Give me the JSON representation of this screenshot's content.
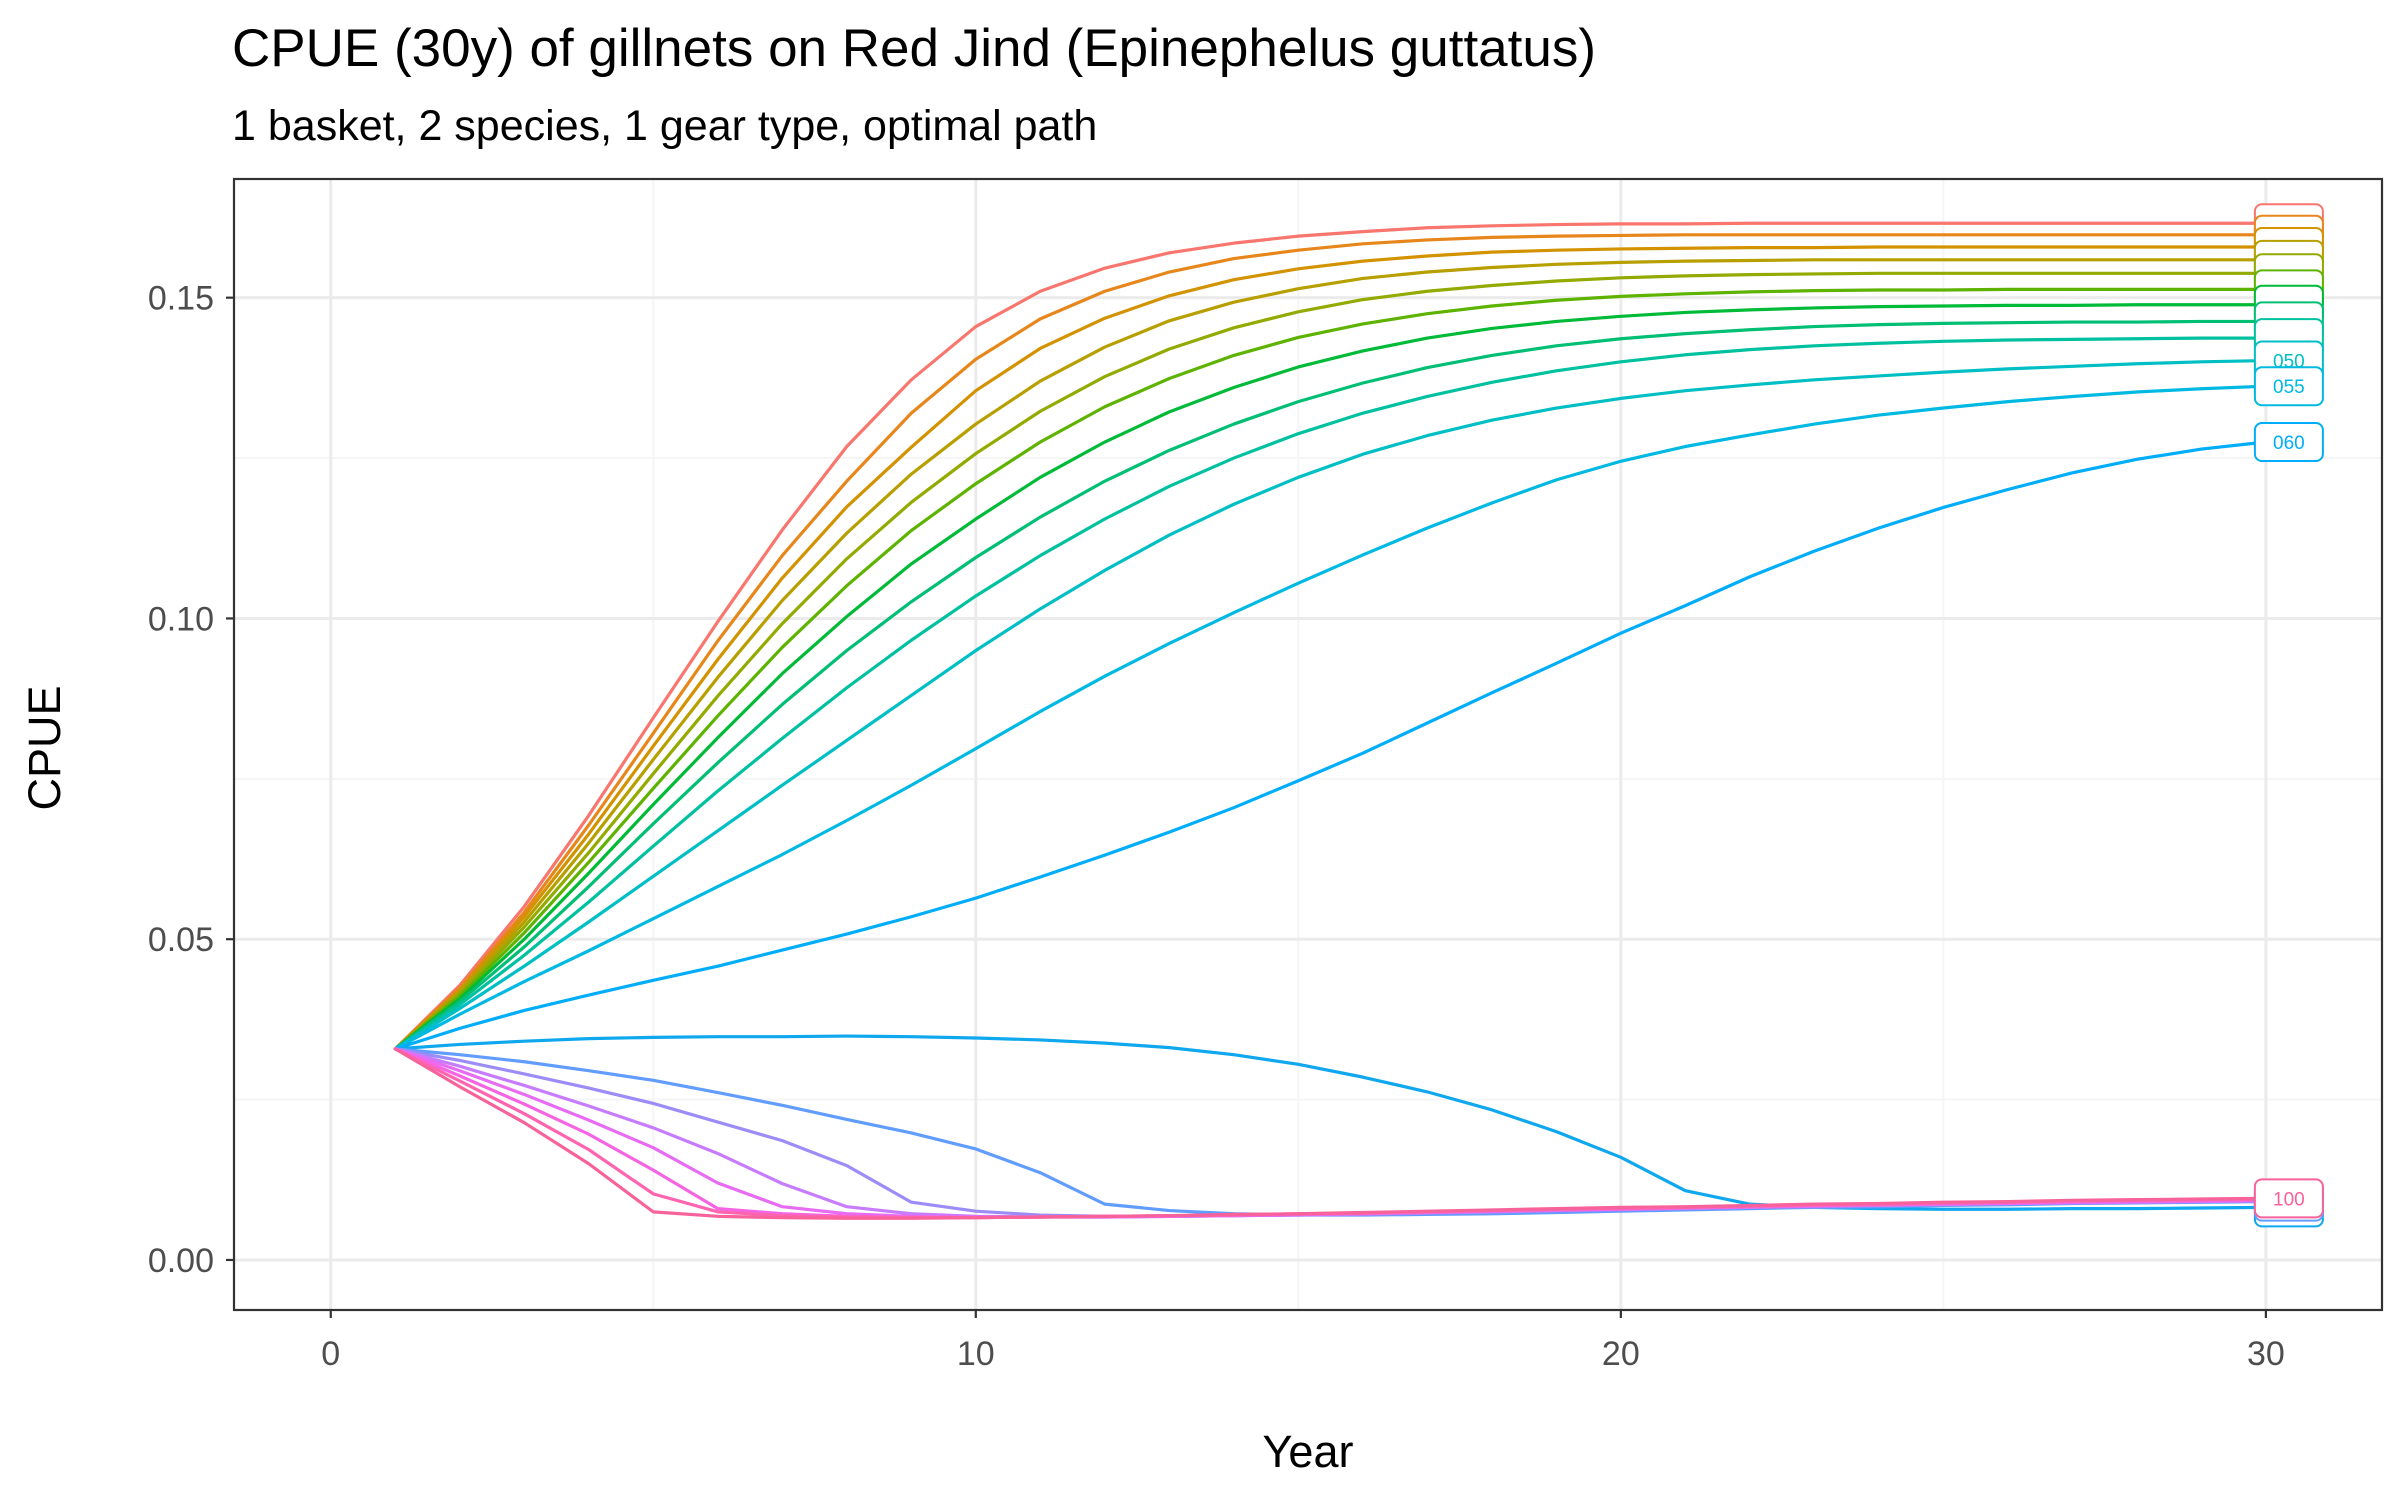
{
  "chart_data": {
    "type": "line",
    "title": "CPUE (30y) of gillnets on Red Jind (Epinephelus guttatus)",
    "subtitle": "1 basket, 2 species, 1 gear type, optimal path",
    "xlabel": "Year",
    "ylabel": "CPUE",
    "xlim": [
      -1.5,
      31.8
    ],
    "ylim": [
      -0.0078,
      0.1685
    ],
    "x_ticks": [
      0,
      10,
      20,
      30
    ],
    "x_tick_labels": [
      "0",
      "10",
      "20",
      "30"
    ],
    "y_ticks": [
      0.0,
      0.05,
      0.1,
      0.15
    ],
    "y_tick_labels": [
      "0.00",
      "0.05",
      "0.10",
      "0.15"
    ],
    "grid": true,
    "legend": "none (labels at line ends)",
    "x": [
      1,
      2,
      3,
      4,
      5,
      6,
      7,
      8,
      9,
      10,
      11,
      12,
      13,
      14,
      15,
      16,
      17,
      18,
      19,
      20,
      21,
      22,
      23,
      24,
      25,
      26,
      27,
      28,
      29,
      30
    ],
    "series": [
      {
        "color": "#F8766D",
        "values": [
          0.0329,
          0.0428,
          0.0551,
          0.0693,
          0.0845,
          0.0995,
          0.1138,
          0.1268,
          0.1372,
          0.1455,
          0.151,
          0.1546,
          0.157,
          0.1585,
          0.1596,
          0.1603,
          0.1609,
          0.1612,
          0.1614,
          0.1615,
          0.1615,
          0.1616,
          0.1616,
          0.1616,
          0.1616,
          0.1616,
          0.1616,
          0.1616,
          0.1616,
          0.1616
        ]
      },
      {
        "color": "#E7861B",
        "values": [
          0.0329,
          0.0424,
          0.0542,
          0.0678,
          0.0821,
          0.0965,
          0.1098,
          0.1214,
          0.132,
          0.1404,
          0.1467,
          0.151,
          0.154,
          0.1561,
          0.1574,
          0.1584,
          0.159,
          0.1594,
          0.1596,
          0.1597,
          0.1598,
          0.1598,
          0.1598,
          0.1598,
          0.1598,
          0.1598,
          0.1598,
          0.1598,
          0.1598,
          0.1598
        ]
      },
      {
        "color": "#D39200",
        "values": [
          0.0329,
          0.0421,
          0.0535,
          0.0664,
          0.0801,
          0.0936,
          0.1063,
          0.1174,
          0.1267,
          0.1355,
          0.1421,
          0.1468,
          0.1503,
          0.1528,
          0.1545,
          0.1557,
          0.1565,
          0.1571,
          0.1574,
          0.1576,
          0.1577,
          0.1578,
          0.1578,
          0.1579,
          0.1579,
          0.1579,
          0.1579,
          0.1579,
          0.1579,
          0.1579
        ]
      },
      {
        "color": "#B79F00",
        "values": [
          0.0329,
          0.0418,
          0.0527,
          0.065,
          0.078,
          0.0908,
          0.1028,
          0.1133,
          0.1225,
          0.1303,
          0.137,
          0.1423,
          0.1464,
          0.1493,
          0.1514,
          0.153,
          0.154,
          0.1547,
          0.1552,
          0.1555,
          0.1557,
          0.1558,
          0.1559,
          0.1559,
          0.1559,
          0.1559,
          0.1559,
          0.1559,
          0.1559,
          0.1559
        ]
      },
      {
        "color": "#93AA00",
        "values": [
          0.0329,
          0.0415,
          0.0519,
          0.0635,
          0.0758,
          0.0879,
          0.0992,
          0.1093,
          0.1181,
          0.1257,
          0.1323,
          0.1377,
          0.142,
          0.1453,
          0.1478,
          0.1497,
          0.151,
          0.1519,
          0.1526,
          0.1531,
          0.1534,
          0.1536,
          0.1537,
          0.1538,
          0.1538,
          0.1538,
          0.1538,
          0.1538,
          0.1538,
          0.1538
        ]
      },
      {
        "color": "#5EB300",
        "values": [
          0.0329,
          0.0411,
          0.051,
          0.062,
          0.0735,
          0.0848,
          0.0955,
          0.1051,
          0.1137,
          0.121,
          0.1275,
          0.133,
          0.1374,
          0.141,
          0.1438,
          0.1459,
          0.1475,
          0.1487,
          0.1496,
          0.1502,
          0.1506,
          0.1509,
          0.1511,
          0.1512,
          0.1512,
          0.1513,
          0.1513,
          0.1513,
          0.1513,
          0.1513
        ]
      },
      {
        "color": "#00BA38",
        "values": [
          0.0329,
          0.0407,
          0.05,
          0.0603,
          0.071,
          0.0814,
          0.0914,
          0.1003,
          0.1085,
          0.1155,
          0.122,
          0.1275,
          0.1322,
          0.136,
          0.1392,
          0.1417,
          0.1437,
          0.1452,
          0.1463,
          0.1471,
          0.1477,
          0.1481,
          0.1484,
          0.1486,
          0.1487,
          0.1488,
          0.1488,
          0.1489,
          0.1489,
          0.1489
        ]
      },
      {
        "color": "#00BF74",
        "values": [
          0.0329,
          0.0403,
          0.0488,
          0.0582,
          0.068,
          0.0775,
          0.0866,
          0.095,
          0.1026,
          0.1095,
          0.1158,
          0.1214,
          0.1262,
          0.1303,
          0.1338,
          0.1367,
          0.1391,
          0.141,
          0.1425,
          0.1436,
          0.1444,
          0.145,
          0.1455,
          0.1458,
          0.146,
          0.1461,
          0.1462,
          0.1462,
          0.1463,
          0.1463
        ]
      },
      {
        "color": "#00C19F",
        "values": [
          0.0329,
          0.0398,
          0.0475,
          0.0558,
          0.0645,
          0.0731,
          0.0813,
          0.0892,
          0.0966,
          0.1035,
          0.1098,
          0.1155,
          0.1206,
          0.125,
          0.1288,
          0.132,
          0.1346,
          0.1368,
          0.1386,
          0.14,
          0.1411,
          0.1419,
          0.1425,
          0.1429,
          0.1432,
          0.1434,
          0.1435,
          0.1436,
          0.1437,
          0.1437
        ]
      },
      {
        "color": "#00BFC4",
        "values": [
          0.0329,
          0.0392,
          0.0458,
          0.0527,
          0.0598,
          0.0669,
          0.074,
          0.081,
          0.088,
          0.095,
          0.1015,
          0.1075,
          0.113,
          0.1178,
          0.122,
          0.1256,
          0.1285,
          0.1309,
          0.1328,
          0.1343,
          0.1355,
          0.1364,
          0.1372,
          0.1378,
          0.1384,
          0.1389,
          0.1393,
          0.1397,
          0.14,
          0.1402
        ]
      },
      {
        "color": "#00B9E3",
        "values": [
          0.0329,
          0.0383,
          0.0434,
          0.0482,
          0.0532,
          0.0582,
          0.0632,
          0.0685,
          0.074,
          0.0797,
          0.0855,
          0.091,
          0.0961,
          0.1009,
          0.1055,
          0.1099,
          0.1141,
          0.118,
          0.1216,
          0.1245,
          0.1268,
          0.1286,
          0.1303,
          0.1317,
          0.1328,
          0.1338,
          0.1346,
          0.1353,
          0.1358,
          0.1362
        ]
      },
      {
        "color": "#00ADFA",
        "values": [
          0.0329,
          0.0361,
          0.0389,
          0.0413,
          0.0436,
          0.0458,
          0.0483,
          0.0508,
          0.0535,
          0.0564,
          0.0597,
          0.0631,
          0.0667,
          0.0705,
          0.0747,
          0.079,
          0.0837,
          0.0884,
          0.093,
          0.0977,
          0.102,
          0.1065,
          0.1105,
          0.1141,
          0.1173,
          0.1201,
          0.1227,
          0.1248,
          0.1264,
          0.1275
        ]
      },
      {
        "color": "#0FA7EE",
        "values": [
          0.0329,
          0.0336,
          0.0341,
          0.0345,
          0.0347,
          0.0348,
          0.0348,
          0.0349,
          0.0348,
          0.0346,
          0.0343,
          0.0338,
          0.0331,
          0.032,
          0.0305,
          0.0285,
          0.0262,
          0.0234,
          0.02,
          0.016,
          0.0108,
          0.0087,
          0.0082,
          0.008,
          0.0079,
          0.0079,
          0.008,
          0.008,
          0.0081,
          0.0082
        ]
      },
      {
        "color": "#619CFF",
        "values": [
          0.0329,
          0.032,
          0.0309,
          0.0295,
          0.028,
          0.0261,
          0.0241,
          0.0219,
          0.0198,
          0.0173,
          0.0136,
          0.0087,
          0.0077,
          0.0072,
          0.007,
          0.007,
          0.0071,
          0.0072,
          0.0074,
          0.0076,
          0.0078,
          0.008,
          0.0082,
          0.0083,
          0.0085,
          0.0086,
          0.0088,
          0.0089,
          0.009,
          0.0091
        ]
      },
      {
        "color": "#9C8CF7",
        "values": [
          0.0329,
          0.0311,
          0.029,
          0.0268,
          0.0244,
          0.0215,
          0.0186,
          0.0147,
          0.009,
          0.0076,
          0.007,
          0.0068,
          0.0068,
          0.0069,
          0.007,
          0.0071,
          0.0073,
          0.0075,
          0.0077,
          0.0078,
          0.008,
          0.0082,
          0.0083,
          0.0085,
          0.0086,
          0.0088,
          0.0089,
          0.009,
          0.0091,
          0.0092
        ]
      },
      {
        "color": "#C77CFF",
        "values": [
          0.0329,
          0.0302,
          0.0272,
          0.024,
          0.0206,
          0.0166,
          0.0119,
          0.0083,
          0.0072,
          0.0068,
          0.0067,
          0.0067,
          0.0068,
          0.0069,
          0.007,
          0.0072,
          0.0074,
          0.0075,
          0.0077,
          0.0079,
          0.0081,
          0.0082,
          0.0084,
          0.0085,
          0.0087,
          0.0088,
          0.0089,
          0.009,
          0.0091,
          0.0092
        ]
      },
      {
        "color": "#E76BF3",
        "values": [
          0.0329,
          0.0295,
          0.0258,
          0.0218,
          0.0175,
          0.012,
          0.0083,
          0.0072,
          0.0068,
          0.0067,
          0.0067,
          0.0067,
          0.0068,
          0.0069,
          0.0071,
          0.0072,
          0.0074,
          0.0076,
          0.0078,
          0.0079,
          0.0081,
          0.0083,
          0.0084,
          0.0086,
          0.0087,
          0.0088,
          0.009,
          0.0091,
          0.0092,
          0.0093
        ]
      },
      {
        "color": "#F564E3",
        "values": [
          0.0329,
          0.0287,
          0.0243,
          0.0196,
          0.014,
          0.008,
          0.0072,
          0.0068,
          0.0067,
          0.0066,
          0.0067,
          0.0068,
          0.0069,
          0.007,
          0.0071,
          0.0073,
          0.0075,
          0.0077,
          0.0078,
          0.008,
          0.0082,
          0.0083,
          0.0085,
          0.0086,
          0.0088,
          0.0089,
          0.0091,
          0.0092,
          0.0093,
          0.0094
        ]
      },
      {
        "color": "#FF64B0",
        "values": [
          0.0329,
          0.0279,
          0.0228,
          0.0172,
          0.0103,
          0.0075,
          0.0069,
          0.0067,
          0.0066,
          0.0066,
          0.0067,
          0.0068,
          0.0069,
          0.007,
          0.0072,
          0.0073,
          0.0075,
          0.0077,
          0.0079,
          0.0081,
          0.0082,
          0.0084,
          0.0086,
          0.0087,
          0.0089,
          0.009,
          0.0092,
          0.0093,
          0.0094,
          0.0095
        ]
      },
      {
        "color": "#F8629A",
        "values": [
          0.0329,
          0.027,
          0.0214,
          0.015,
          0.0075,
          0.0068,
          0.0066,
          0.0065,
          0.0065,
          0.0066,
          0.0067,
          0.0068,
          0.0069,
          0.0071,
          0.0072,
          0.0074,
          0.0076,
          0.0078,
          0.008,
          0.0082,
          0.0083,
          0.0085,
          0.0087,
          0.0088,
          0.009,
          0.0091,
          0.0093,
          0.0094,
          0.0095,
          0.0096
        ]
      }
    ],
    "end_labels": [
      {
        "text": "",
        "series": 0,
        "color": "#F8766D"
      },
      {
        "text": "",
        "series": 1,
        "color": "#E7861B"
      },
      {
        "text": "",
        "series": 2,
        "color": "#D39200"
      },
      {
        "text": "",
        "series": 3,
        "color": "#B79F00"
      },
      {
        "text": "",
        "series": 4,
        "color": "#93AA00"
      },
      {
        "text": "",
        "series": 5,
        "color": "#5EB300"
      },
      {
        "text": "",
        "series": 6,
        "color": "#00BA38"
      },
      {
        "text": "",
        "series": 7,
        "color": "#00BF74"
      },
      {
        "text": "",
        "series": 8,
        "color": "#00C19F"
      },
      {
        "text": "050",
        "series": 9,
        "color": "#00BFC4"
      },
      {
        "text": "055",
        "series": 10,
        "color": "#00B9E3"
      },
      {
        "text": "060",
        "series": 11,
        "color": "#00ADFA"
      },
      {
        "text": "",
        "series": 12,
        "color": "#0FA7EE"
      },
      {
        "text": "",
        "series": 13,
        "color": "#619CFF"
      },
      {
        "text": "100",
        "series": 19,
        "color": "#F8629A"
      }
    ],
    "colors": {
      "panel_border": "#333333",
      "grid_major": "#EBEBEB",
      "grid_minor": "#F5F5F5",
      "tick_text": "#4D4D4D",
      "text": "#000000"
    }
  }
}
